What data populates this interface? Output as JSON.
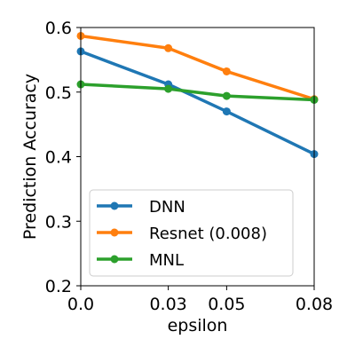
{
  "chart_data": {
    "type": "line",
    "title": "",
    "xlabel": "epsilon",
    "ylabel": "Prediction Accuracy",
    "x": [
      0.0,
      0.03,
      0.05,
      0.08
    ],
    "x_tick_labels": [
      "0.0",
      "0.03",
      "0.05",
      "0.08"
    ],
    "y_ticks": [
      0.2,
      0.3,
      0.4,
      0.5,
      0.6
    ],
    "y_tick_labels": [
      "0.2",
      "0.3",
      "0.4",
      "0.5",
      "0.6"
    ],
    "ylim": [
      0.2,
      0.6
    ],
    "grid": false,
    "legend_position": "bottom-left",
    "series": [
      {
        "name": "DNN",
        "color": "#1f77b4",
        "values": [
          0.563,
          0.512,
          0.47,
          0.404
        ]
      },
      {
        "name": "Resnet (0.008)",
        "color": "#ff7f0e",
        "values": [
          0.587,
          0.568,
          0.532,
          0.489
        ]
      },
      {
        "name": "MNL",
        "color": "#2ca02c",
        "values": [
          0.512,
          0.505,
          0.494,
          0.488
        ]
      }
    ]
  }
}
